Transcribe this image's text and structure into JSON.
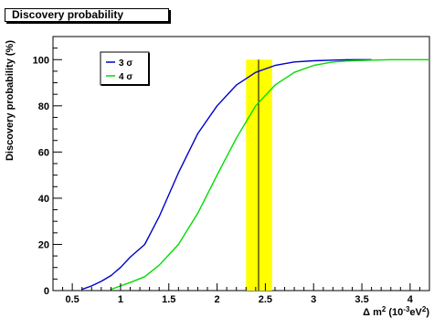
{
  "chart_data": {
    "type": "line",
    "title": "Discovery probability",
    "ylabel": "Discovery probability (%)",
    "xlabel_parts": {
      "prefix": "Δ m",
      "sup1": "2",
      "mid": " (10",
      "sup2": "-3",
      "mid2": "eV",
      "sup3": "2",
      "suffix": ")"
    },
    "xlim": [
      0.3,
      4.2
    ],
    "ylim": [
      0,
      110
    ],
    "xticks": [
      0.5,
      1,
      1.5,
      2,
      2.5,
      3,
      3.5,
      4
    ],
    "xtick_labels": [
      "0.5",
      "1",
      "1.5",
      "2",
      "2.5",
      "3",
      "3.5",
      "4"
    ],
    "yticks": [
      0,
      20,
      40,
      60,
      80,
      100
    ],
    "ytick_labels": [
      "0",
      "20",
      "40",
      "60",
      "80",
      "100"
    ],
    "band": {
      "x_min": 2.3,
      "x_max": 2.57,
      "y_max": 100,
      "color": "#ffff00"
    },
    "vline": {
      "x": 2.43,
      "y_max": 100
    },
    "legend_position": "top-left",
    "series": [
      {
        "name": "3 σ",
        "color": "#0000c8",
        "x": [
          0.6,
          0.7,
          0.8,
          0.9,
          1.0,
          1.1,
          1.25,
          1.4,
          1.6,
          1.8,
          2.0,
          2.2,
          2.4,
          2.6,
          2.8,
          3.0,
          3.2,
          3.4,
          3.6
        ],
        "y": [
          0.5,
          2,
          4,
          6.5,
          10,
          14.5,
          20,
          32,
          51,
          68,
          80,
          89,
          94.5,
          97.5,
          99,
          99.5,
          99.8,
          100,
          100
        ]
      },
      {
        "name": "4 σ",
        "color": "#00dc00",
        "x": [
          0.9,
          1.0,
          1.1,
          1.25,
          1.4,
          1.6,
          1.8,
          2.0,
          2.2,
          2.4,
          2.6,
          2.8,
          3.0,
          3.2,
          3.4,
          3.6,
          3.8,
          4.0,
          4.2
        ],
        "y": [
          0.5,
          2,
          3.5,
          6,
          11,
          20,
          33.5,
          50,
          66,
          80,
          89,
          94.5,
          97.5,
          99,
          99.5,
          99.8,
          100,
          100,
          100
        ]
      }
    ]
  }
}
